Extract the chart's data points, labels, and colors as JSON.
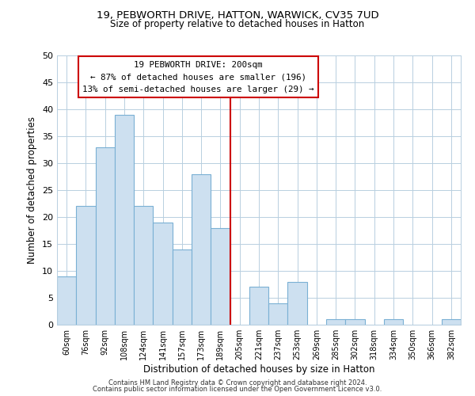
{
  "title1": "19, PEBWORTH DRIVE, HATTON, WARWICK, CV35 7UD",
  "title2": "Size of property relative to detached houses in Hatton",
  "xlabel": "Distribution of detached houses by size in Hatton",
  "ylabel": "Number of detached properties",
  "bar_labels": [
    "60sqm",
    "76sqm",
    "92sqm",
    "108sqm",
    "124sqm",
    "141sqm",
    "157sqm",
    "173sqm",
    "189sqm",
    "205sqm",
    "221sqm",
    "237sqm",
    "253sqm",
    "269sqm",
    "285sqm",
    "302sqm",
    "318sqm",
    "334sqm",
    "350sqm",
    "366sqm",
    "382sqm"
  ],
  "bar_values": [
    9,
    22,
    33,
    39,
    22,
    19,
    14,
    28,
    18,
    0,
    7,
    4,
    8,
    0,
    1,
    1,
    0,
    1,
    0,
    0,
    1
  ],
  "bar_color": "#cde0f0",
  "bar_edge_color": "#7ab0d4",
  "vline_color": "#cc0000",
  "ylim": [
    0,
    50
  ],
  "yticks": [
    0,
    5,
    10,
    15,
    20,
    25,
    30,
    35,
    40,
    45,
    50
  ],
  "annotation_title": "19 PEBWORTH DRIVE: 200sqm",
  "annotation_line1": "← 87% of detached houses are smaller (196)",
  "annotation_line2": "13% of semi-detached houses are larger (29) →",
  "annotation_box_color": "#ffffff",
  "annotation_box_edge": "#cc0000",
  "footer1": "Contains HM Land Registry data © Crown copyright and database right 2024.",
  "footer2": "Contains public sector information licensed under the Open Government Licence v3.0.",
  "background_color": "#ffffff",
  "grid_color": "#b8cfe0"
}
